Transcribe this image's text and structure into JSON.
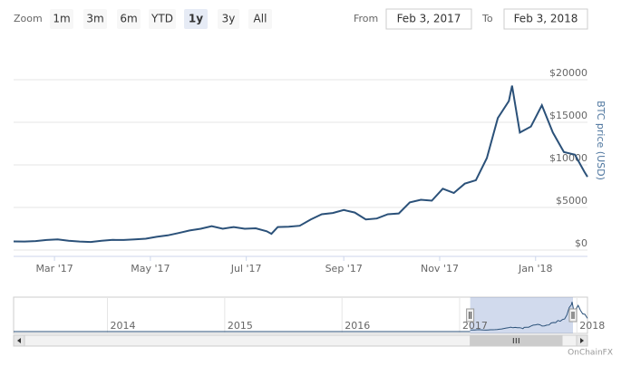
{
  "range_selector": {
    "zoom_label": "Zoom",
    "buttons": [
      "1m",
      "3m",
      "6m",
      "YTD",
      "1y",
      "3y",
      "All"
    ],
    "selected_button": 4,
    "from_label": "From",
    "from_value": "Feb 3, 2017",
    "to_label": "To",
    "to_value": "Feb 3, 2018"
  },
  "chart_data": {
    "type": "line",
    "y_axis_title": "BTC price (USD)",
    "x": [
      "2017-02-03",
      "2017-02-10",
      "2017-02-17",
      "2017-02-24",
      "2017-03-03",
      "2017-03-10",
      "2017-03-17",
      "2017-03-24",
      "2017-03-31",
      "2017-04-07",
      "2017-04-14",
      "2017-04-21",
      "2017-04-28",
      "2017-05-05",
      "2017-05-12",
      "2017-05-19",
      "2017-05-26",
      "2017-06-02",
      "2017-06-09",
      "2017-06-16",
      "2017-06-23",
      "2017-06-30",
      "2017-07-07",
      "2017-07-14",
      "2017-07-17",
      "2017-07-21",
      "2017-07-28",
      "2017-08-04",
      "2017-08-11",
      "2017-08-18",
      "2017-08-25",
      "2017-09-01",
      "2017-09-08",
      "2017-09-15",
      "2017-09-22",
      "2017-09-29",
      "2017-10-06",
      "2017-10-13",
      "2017-10-20",
      "2017-10-27",
      "2017-11-03",
      "2017-11-10",
      "2017-11-17",
      "2017-11-24",
      "2017-12-01",
      "2017-12-08",
      "2017-12-15",
      "2017-12-17",
      "2017-12-22",
      "2017-12-29",
      "2018-01-05",
      "2018-01-12",
      "2018-01-19",
      "2018-01-26",
      "2018-02-01",
      "2018-02-03"
    ],
    "series": [
      {
        "name": "BTC price (USD)",
        "color": "#2b5179",
        "values": [
          1010,
          1000,
          1050,
          1180,
          1260,
          1100,
          1000,
          950,
          1080,
          1190,
          1180,
          1240,
          1330,
          1550,
          1720,
          2000,
          2300,
          2500,
          2800,
          2500,
          2700,
          2500,
          2550,
          2200,
          1900,
          2700,
          2750,
          2850,
          3600,
          4200,
          4350,
          4700,
          4400,
          3600,
          3700,
          4200,
          4300,
          5600,
          5900,
          5800,
          7200,
          6700,
          7800,
          8200,
          10800,
          15500,
          17500,
          19300,
          13800,
          14500,
          17000,
          13800,
          11500,
          11200,
          9200,
          8600
        ]
      }
    ],
    "xlim": [
      "2017-02-03",
      "2018-02-03"
    ],
    "xticks": [
      {
        "value": "2017-03-01",
        "label": "Mar '17"
      },
      {
        "value": "2017-05-01",
        "label": "May '17"
      },
      {
        "value": "2017-07-01",
        "label": "Jul '17"
      },
      {
        "value": "2017-09-01",
        "label": "Sep '17"
      },
      {
        "value": "2017-11-01",
        "label": "Nov '17"
      },
      {
        "value": "2018-01-01",
        "label": "Jan '18"
      }
    ],
    "ylim": [
      0,
      20000
    ],
    "yticks": [
      {
        "value": 0,
        "label": "$0"
      },
      {
        "value": 5000,
        "label": "$5000"
      },
      {
        "value": 10000,
        "label": "$10000"
      },
      {
        "value": 15000,
        "label": "$15000"
      },
      {
        "value": 20000,
        "label": "$20000"
      }
    ],
    "grid": true,
    "navigator": {
      "xlim": [
        "2013-03-15",
        "2018-02-03"
      ],
      "xticks": [
        {
          "value": "2014-01-01",
          "label": "2014"
        },
        {
          "value": "2015-01-01",
          "label": "2015"
        },
        {
          "value": "2016-01-01",
          "label": "2016"
        },
        {
          "value": "2017-01-01",
          "label": "2017"
        },
        {
          "value": "2018-01-01",
          "label": "2018"
        }
      ]
    },
    "credit": "OnChainFX"
  }
}
